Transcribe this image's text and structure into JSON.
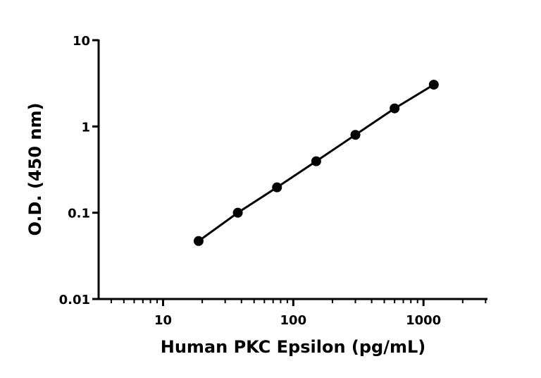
{
  "chart_data": {
    "type": "scatter",
    "xlabel": "Human PKC Epsilon (pg/mL)",
    "ylabel": "O.D. (450 nm)",
    "x": [
      18.75,
      37.5,
      75,
      150,
      300,
      600,
      1200
    ],
    "values": [
      0.047,
      0.1,
      0.197,
      0.395,
      0.8,
      1.62,
      3.05
    ],
    "color": "#000000",
    "xscale": "log",
    "yscale": "log",
    "xlim": [
      3.2,
      3100
    ],
    "ylim": [
      0.01,
      10
    ],
    "xticks": [
      10,
      100,
      1000
    ],
    "yticks": [
      0.01,
      0.1,
      1,
      10
    ],
    "grid": false
  }
}
